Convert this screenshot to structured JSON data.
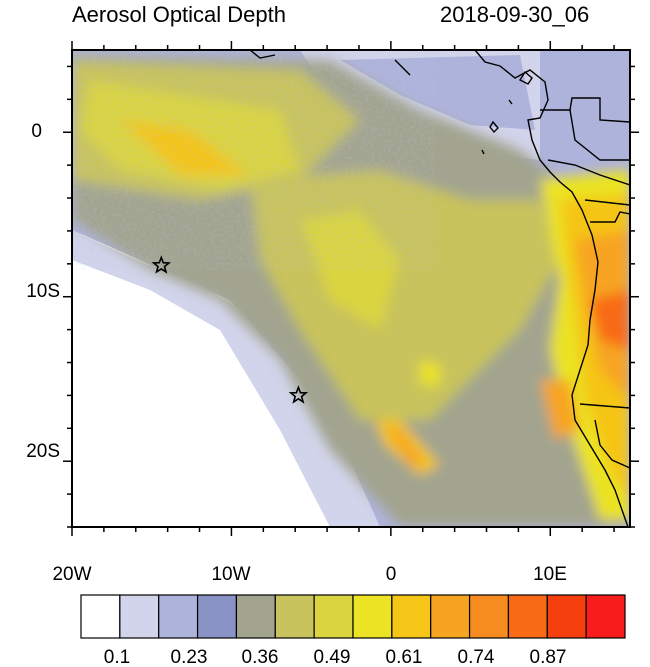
{
  "title": "Aerosol Optical Depth",
  "datetime": "2018-09-30_06",
  "map": {
    "lon_range": [
      -20,
      15
    ],
    "lat_range": [
      -24,
      5
    ],
    "x_ticks": [
      "20W",
      "10W",
      "0",
      "10E"
    ],
    "y_ticks": [
      "0",
      "10S",
      "20S"
    ],
    "markers": [
      {
        "symbol": "star",
        "lon": -14.4,
        "lat": -8.1
      },
      {
        "symbol": "star",
        "lon": -5.8,
        "lat": -16.0
      }
    ]
  },
  "colorbar": {
    "labels": [
      "0.1",
      "0.23",
      "0.36",
      "0.49",
      "0.61",
      "0.74",
      "0.87"
    ],
    "colors": [
      "#ffffff",
      "#d1d4ea",
      "#aeb3db",
      "#8993c5",
      "#a2a48f",
      "#c8c35c",
      "#d9d43f",
      "#ebe324",
      "#f5c518",
      "#f7a421",
      "#f68c20",
      "#f86a15",
      "#f5400e",
      "#f81c1c"
    ]
  }
}
